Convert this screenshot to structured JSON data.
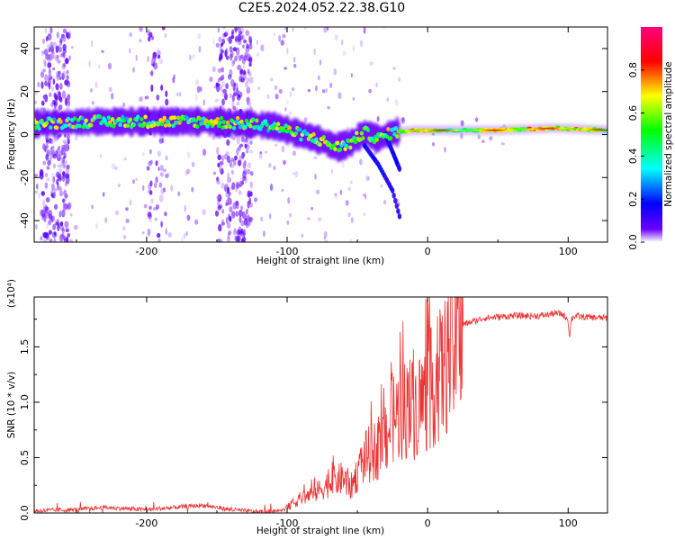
{
  "title": "C2E5.2024.052.22.38.G10",
  "chart_data": [
    {
      "type": "heatmap",
      "xlabel": "Height of straight line (km)",
      "ylabel": "Frequency (Hz)",
      "xlim": [
        -280,
        128
      ],
      "ylim": [
        -50,
        50
      ],
      "xticks": [
        -200,
        -100,
        0,
        100
      ],
      "xtick_labels": [
        "-200",
        "-100",
        "0",
        "100"
      ],
      "yticks": [
        -40,
        -20,
        0,
        20,
        40
      ],
      "ytick_labels": [
        "-40",
        "-20",
        "0",
        "20",
        "40"
      ],
      "colorbar": {
        "label": "Normalized spectral amplitude",
        "range": [
          0,
          1
        ],
        "ticks": [
          0.0,
          0.2,
          0.4,
          0.6,
          0.8
        ],
        "tick_labels": [
          "0.0",
          "0.2",
          "0.4",
          "0.6",
          "0.8"
        ],
        "colors": [
          "#ffffff",
          "#6a00ff",
          "#0000ff",
          "#00ffff",
          "#00ff00",
          "#ffff00",
          "#ff0000",
          "#ff007f"
        ]
      },
      "ridge": [
        {
          "x": -280,
          "y": 5
        },
        {
          "x": -240,
          "y": 6
        },
        {
          "x": -200,
          "y": 6
        },
        {
          "x": -160,
          "y": 6
        },
        {
          "x": -130,
          "y": 5
        },
        {
          "x": -110,
          "y": 4
        },
        {
          "x": -90,
          "y": 0
        },
        {
          "x": -75,
          "y": -3
        },
        {
          "x": -65,
          "y": -6
        },
        {
          "x": -55,
          "y": -4
        },
        {
          "x": -45,
          "y": 1
        },
        {
          "x": -35,
          "y": -2
        },
        {
          "x": -25,
          "y": 1
        },
        {
          "x": -10,
          "y": 2
        },
        {
          "x": 0,
          "y": 2
        },
        {
          "x": 50,
          "y": 2
        },
        {
          "x": 90,
          "y": 3
        },
        {
          "x": 128,
          "y": 2
        }
      ],
      "branches": [
        {
          "points": [
            {
              "x": -30,
              "y": 0
            },
            {
              "x": -25,
              "y": -8
            },
            {
              "x": -20,
              "y": -16
            }
          ]
        },
        {
          "points": [
            {
              "x": -45,
              "y": -5
            },
            {
              "x": -35,
              "y": -14
            },
            {
              "x": -25,
              "y": -26
            },
            {
              "x": -20,
              "y": -38
            }
          ]
        }
      ],
      "noise_bands_x": [
        [
          -275,
          -255
        ],
        [
          -150,
          -125
        ],
        [
          -200,
          -185
        ]
      ]
    },
    {
      "type": "line",
      "xlabel": "Height of straight line (km)",
      "ylabel": "SNR (10 * v/v)",
      "scale_label": "(x10⁴)",
      "xlim": [
        -280,
        128
      ],
      "ylim": [
        0,
        1.95
      ],
      "xticks": [
        -200,
        -100,
        0,
        100
      ],
      "xtick_labels": [
        "-200",
        "-100",
        "0",
        "100"
      ],
      "yticks": [
        0.0,
        0.5,
        1.0,
        1.5
      ],
      "ytick_labels": [
        "0.0",
        "0.5",
        "1.0",
        "1.5"
      ],
      "color": "#ee3333",
      "series": [
        {
          "x": [
            -280,
            -250,
            -230,
            -200,
            -180,
            -160,
            -140,
            -120,
            -105,
            -100,
            -90,
            -80,
            -70,
            -60,
            -55,
            -50,
            -45,
            -40,
            -35,
            -30,
            -25,
            -20,
            -15,
            -10,
            -5,
            0,
            5,
            10,
            15,
            20,
            25,
            30,
            40,
            50,
            60,
            70,
            80,
            90,
            95,
            100,
            101,
            102,
            105,
            110,
            128
          ],
          "y": [
            0.02,
            0.03,
            0.05,
            0.03,
            0.05,
            0.07,
            0.03,
            0.01,
            0.02,
            0.05,
            0.15,
            0.2,
            0.3,
            0.35,
            0.25,
            0.4,
            0.55,
            0.6,
            0.65,
            0.75,
            0.95,
            1.0,
            1.05,
            1.05,
            1.1,
            1.2,
            1.3,
            1.4,
            1.55,
            1.65,
            1.7,
            1.72,
            1.76,
            1.77,
            1.78,
            1.78,
            1.78,
            1.8,
            1.8,
            1.75,
            1.55,
            1.75,
            1.78,
            1.77,
            1.76
          ]
        }
      ]
    }
  ]
}
